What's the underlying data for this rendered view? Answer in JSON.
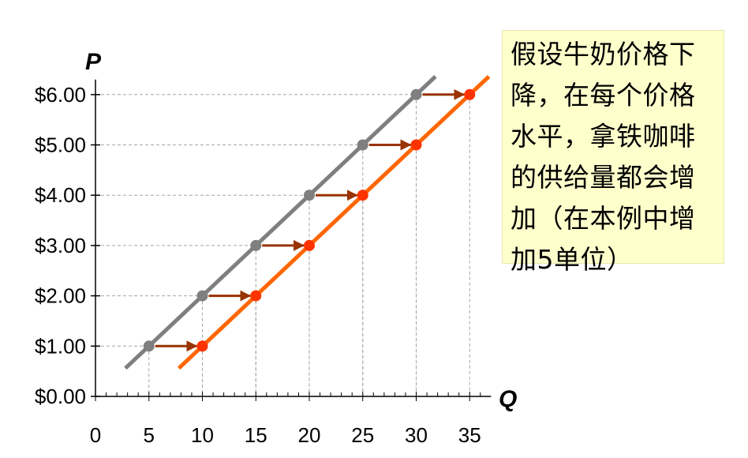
{
  "chart_data": {
    "type": "line",
    "xlabel": "Q",
    "ylabel": "P",
    "xlim": [
      0,
      35
    ],
    "ylim": [
      0,
      6
    ],
    "x_ticks": [
      "0",
      "5",
      "10",
      "15",
      "20",
      "25",
      "30",
      "35"
    ],
    "y_ticks": [
      "$0.00",
      "$1.00",
      "$2.00",
      "$3.00",
      "$4.00",
      "$5.00",
      "$6.00"
    ],
    "series": [
      {
        "color": "#7f7f7f",
        "points": [
          [
            5,
            1
          ],
          [
            10,
            2
          ],
          [
            15,
            3
          ],
          [
            20,
            4
          ],
          [
            25,
            5
          ],
          [
            30,
            6
          ]
        ]
      },
      {
        "color": "#ff6600",
        "points": [
          [
            10,
            1
          ],
          [
            15,
            2
          ],
          [
            20,
            3
          ],
          [
            25,
            4
          ],
          [
            30,
            5
          ],
          [
            35,
            6
          ]
        ]
      }
    ],
    "arrows": [
      {
        "from": [
          5,
          1
        ],
        "to": [
          10,
          1
        ]
      },
      {
        "from": [
          10,
          2
        ],
        "to": [
          15,
          2
        ]
      },
      {
        "from": [
          15,
          3
        ],
        "to": [
          20,
          3
        ]
      },
      {
        "from": [
          20,
          4
        ],
        "to": [
          25,
          4
        ]
      },
      {
        "from": [
          25,
          5
        ],
        "to": [
          30,
          5
        ]
      },
      {
        "from": [
          30,
          6
        ],
        "to": [
          35,
          6
        ]
      }
    ],
    "arrow_color": "#993300",
    "gridlines": "dashed guides to points",
    "annotation": "假设牛奶价格下降，在每个价格水平，拿铁咖啡的供给量都会增加（在本例中增加5单位）"
  }
}
